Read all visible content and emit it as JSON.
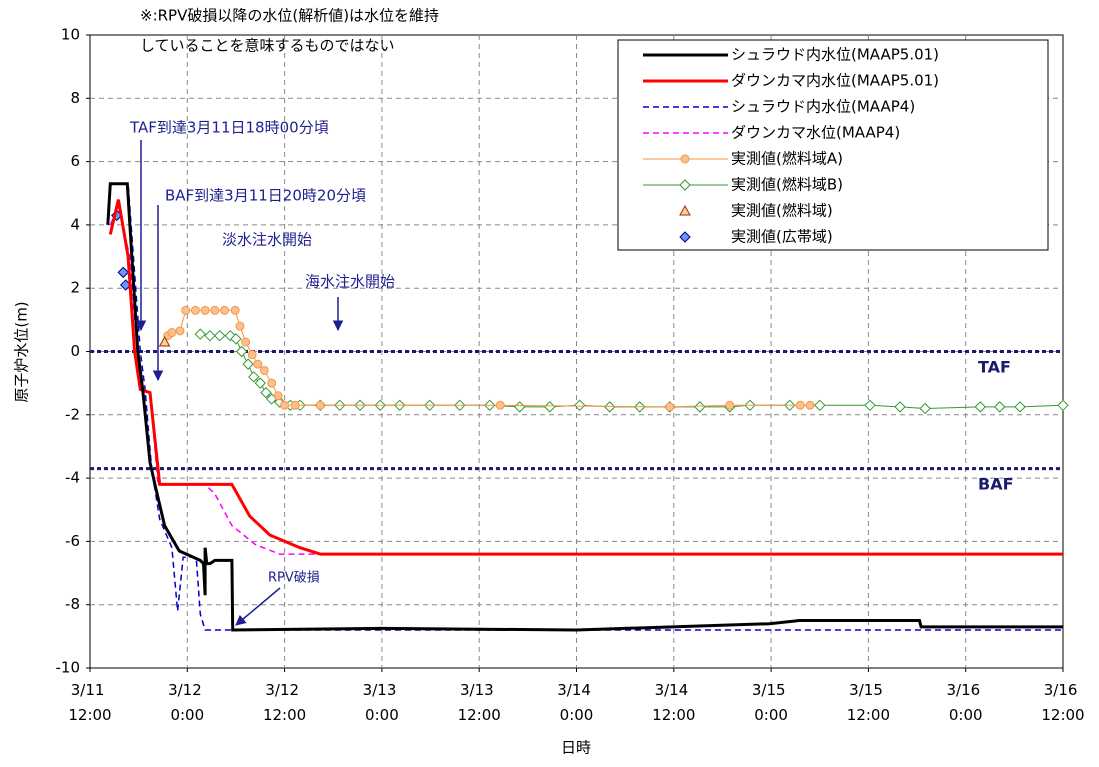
{
  "chart_data": {
    "type": "line",
    "note": [
      "※:RPV破損以降の水位(解析値)は水位を維持",
      "していることを意味するものではない"
    ],
    "xlabel": "日時",
    "ylabel": "原子炉水位(m)",
    "xlim": [
      0,
      120
    ],
    "xticks": [
      {
        "value": 0,
        "label": "3/11 12:00"
      },
      {
        "value": 12,
        "label": "3/12 0:00"
      },
      {
        "value": 24,
        "label": "3/12 12:00"
      },
      {
        "value": 36,
        "label": "3/13 0:00"
      },
      {
        "value": 48,
        "label": "3/13 12:00"
      },
      {
        "value": 60,
        "label": "3/14 0:00"
      },
      {
        "value": 72,
        "label": "3/14 12:00"
      },
      {
        "value": 84,
        "label": "3/15 0:00"
      },
      {
        "value": 96,
        "label": "3/15 12:00"
      },
      {
        "value": 108,
        "label": "3/16 0:00"
      },
      {
        "value": 120,
        "label": "3/16 12:00"
      }
    ],
    "ylim": [
      -10,
      10
    ],
    "yticks": [
      -10,
      -8,
      -6,
      -4,
      -2,
      0,
      2,
      4,
      6,
      8,
      10
    ],
    "grid": true,
    "legend": "top-right",
    "reference_lines": [
      {
        "label": "TAF",
        "value": 0
      },
      {
        "label": "BAF",
        "value": -3.7
      }
    ],
    "annotations": [
      "TAF到達3月11日18時00分頃",
      "BAF到達3月11日20時20分頃",
      "淡水注水開始",
      "海水注水開始",
      "RPV破損"
    ],
    "series": [
      {
        "name": "シュラウド内水位(MAAP5.01)",
        "color": "#000000",
        "dash": false,
        "width": 3,
        "marker": null,
        "x": [
          2.2,
          2.5,
          4.6,
          5.9,
          6.5,
          7.4,
          8.0,
          9.2,
          11.0,
          13.6,
          14.0,
          14.2,
          14.2,
          14.4,
          14.8,
          15.4,
          17.5,
          17.6,
          36.0,
          60.0,
          83.8,
          87.5,
          102.3,
          102.5,
          120.0
        ],
        "values": [
          4.0,
          5.3,
          5.3,
          0,
          -1.2,
          -3.5,
          -4.2,
          -5.5,
          -6.3,
          -6.6,
          -6.7,
          -7.7,
          -6.2,
          -6.7,
          -6.7,
          -6.6,
          -6.6,
          -8.8,
          -8.75,
          -8.8,
          -8.6,
          -8.5,
          -8.5,
          -8.7,
          -8.7
        ]
      },
      {
        "name": "ダウンカマ内水位(MAAP5.01)",
        "color": "#ff0000",
        "dash": false,
        "width": 3,
        "marker": null,
        "x": [
          2.5,
          3.5,
          4.7,
          5.5,
          6.2,
          7.4,
          8.6,
          17.5,
          19.7,
          22.2,
          25.9,
          28.4,
          120.0
        ],
        "values": [
          3.7,
          4.8,
          3.0,
          0,
          -1.2,
          -1.3,
          -4.2,
          -4.2,
          -5.2,
          -5.8,
          -6.2,
          -6.4,
          -6.4
        ]
      },
      {
        "name": "シュラウド内水位(MAAP4)",
        "color": "#0000cc",
        "dash": true,
        "width": 1.5,
        "marker": null,
        "x": [
          2.5,
          4.7,
          6.2,
          6.8,
          7.6,
          8.6,
          10.1,
          10.8,
          11.5,
          13.1,
          13.6,
          14.2,
          120.0
        ],
        "values": [
          5.3,
          5.3,
          0,
          -1.2,
          -3.7,
          -5.3,
          -6.2,
          -8.2,
          -6.5,
          -6.5,
          -8.3,
          -8.8,
          -8.8
        ]
      },
      {
        "name": "ダウンカマ水位(MAAP4)",
        "color": "#ff00ff",
        "dash": true,
        "width": 1.5,
        "marker": null,
        "x": [
          2.5,
          3.5,
          4.9,
          6.2,
          7.4,
          8.4,
          14.2,
          15.4,
          17.5,
          20.4,
          23.4,
          120.0
        ],
        "values": [
          4.0,
          4.6,
          3.0,
          -1.2,
          -1.3,
          -4.2,
          -4.2,
          -4.5,
          -5.5,
          -6.1,
          -6.4,
          -6.4
        ]
      },
      {
        "name": "実測値(燃料域A)",
        "color": "#f79646",
        "dash": false,
        "width": 1,
        "marker": "circle",
        "marker_fill": "#fac090",
        "x": [
          9.6,
          10.1,
          11.1,
          11.8,
          13.0,
          14.2,
          15.4,
          16.6,
          17.9,
          18.5,
          19.2,
          20.0,
          20.7,
          21.5,
          22.4,
          23.2,
          24.0,
          25.3,
          28.4,
          50.6,
          71.5,
          78.9,
          87.6,
          88.8
        ],
        "values": [
          0.5,
          0.6,
          0.65,
          1.3,
          1.3,
          1.3,
          1.3,
          1.3,
          1.3,
          0.8,
          0.3,
          -0.1,
          -0.4,
          -0.6,
          -1.0,
          -1.4,
          -1.7,
          -1.7,
          -1.7,
          -1.7,
          -1.75,
          -1.7,
          -1.7,
          -1.7
        ]
      },
      {
        "name": "実測値(燃料域B)",
        "color": "#339933",
        "dash": false,
        "width": 1,
        "marker": "diamond",
        "marker_fill": "#ffffff",
        "x": [
          13.6,
          14.8,
          16.0,
          17.3,
          18.0,
          18.7,
          19.5,
          20.2,
          21.0,
          21.7,
          22.4,
          23.4,
          24.7,
          25.9,
          28.4,
          30.8,
          33.3,
          35.8,
          38.2,
          41.9,
          45.6,
          49.3,
          53.0,
          56.7,
          60.4,
          64.1,
          67.8,
          71.5,
          75.2,
          78.9,
          81.4,
          86.3,
          90.0,
          96.2,
          99.9,
          103.0,
          109.8,
          112.2,
          114.7,
          120.0
        ],
        "values": [
          0.55,
          0.5,
          0.5,
          0.5,
          0.4,
          0,
          -0.4,
          -0.8,
          -1.0,
          -1.3,
          -1.5,
          -1.6,
          -1.7,
          -1.7,
          -1.7,
          -1.7,
          -1.7,
          -1.7,
          -1.7,
          -1.7,
          -1.7,
          -1.7,
          -1.75,
          -1.75,
          -1.7,
          -1.75,
          -1.75,
          -1.75,
          -1.75,
          -1.75,
          -1.7,
          -1.7,
          -1.7,
          -1.7,
          -1.75,
          -1.8,
          -1.75,
          -1.75,
          -1.75,
          -1.7
        ]
      },
      {
        "name": "実測値(燃料域)",
        "color": "#993300",
        "dash": false,
        "width": 0,
        "marker": "triangle",
        "marker_fill": "#ffcc99",
        "x": [
          9.2
        ],
        "values": [
          0.3
        ]
      },
      {
        "name": "実測値(広帯域)",
        "color": "#000080",
        "dash": false,
        "width": 0,
        "marker": "diamond",
        "marker_fill": "#6699ff",
        "x": [
          3.3,
          4.1,
          4.4
        ],
        "values": [
          4.3,
          2.5,
          2.1
        ]
      }
    ]
  }
}
